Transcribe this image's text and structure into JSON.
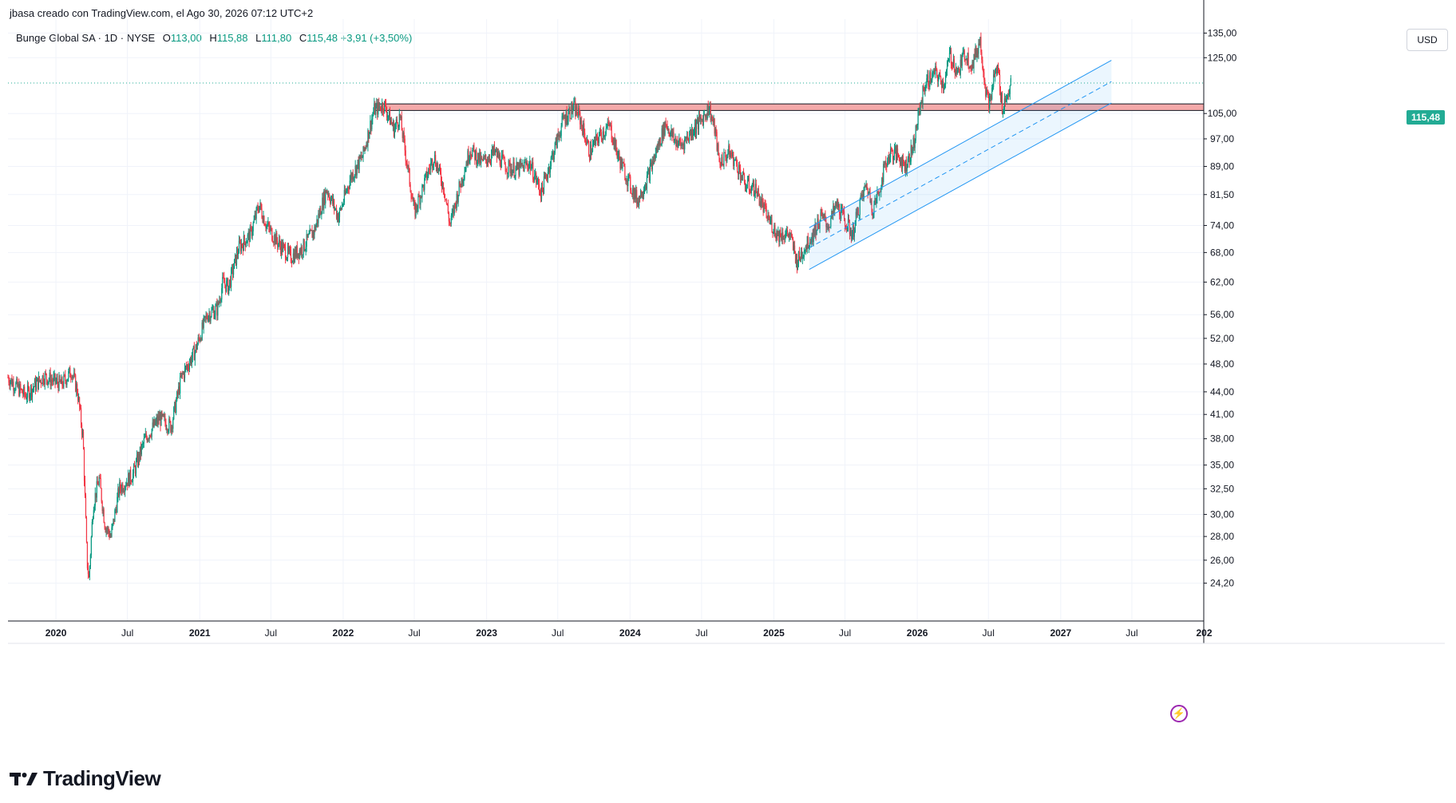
{
  "header": {
    "attribution": "jbasa creado con TradingView.com, el Ago 30, 2026 07:12 UTC+2"
  },
  "legend": {
    "symbol": "Bunge Global SA · 1D · NYSE",
    "open_label": "O",
    "open": "113,00",
    "high_label": "H",
    "high": "115,88",
    "low_label": "L",
    "low": "111,80",
    "close_label": "C",
    "close": "115,48",
    "change": "+3,91 (+3,50%)"
  },
  "price_axis": {
    "currency": "USD",
    "last_price_tag": "115,48"
  },
  "brand": {
    "name": "TradingView"
  },
  "icons": {
    "brand_logo": "tradingview-logo-icon",
    "lightning": "lightning-icon"
  },
  "colors": {
    "up": "#089981",
    "down": "#f23645",
    "resistance_zone": "#f5a9a9",
    "channel": "#2196f3",
    "last_price": "#22ab94"
  },
  "chart_data": {
    "type": "candlestick",
    "scale": "log",
    "ylim": [
      21.5,
      141
    ],
    "y_ticks": [
      {
        "value": 135,
        "label": "135,00"
      },
      {
        "value": 125,
        "label": "125,00"
      },
      {
        "value": 105,
        "label": "105,00"
      },
      {
        "value": 97,
        "label": "97,00"
      },
      {
        "value": 89,
        "label": "89,00"
      },
      {
        "value": 81.5,
        "label": "81,50"
      },
      {
        "value": 74,
        "label": "74,00"
      },
      {
        "value": 68,
        "label": "68,00"
      },
      {
        "value": 62,
        "label": "62,00"
      },
      {
        "value": 56,
        "label": "56,00"
      },
      {
        "value": 52,
        "label": "52,00"
      },
      {
        "value": 48,
        "label": "48,00"
      },
      {
        "value": 44,
        "label": "44,00"
      },
      {
        "value": 41,
        "label": "41,00"
      },
      {
        "value": 38,
        "label": "38,00"
      },
      {
        "value": 35,
        "label": "35,00"
      },
      {
        "value": 32.5,
        "label": "32,50"
      },
      {
        "value": 30,
        "label": "30,00"
      },
      {
        "value": 28,
        "label": "28,00"
      },
      {
        "value": 26,
        "label": "26,00"
      },
      {
        "value": 24.2,
        "label": "24,20"
      }
    ],
    "x_range": [
      "2019-09-01",
      "2027-12-31"
    ],
    "x_ticks": [
      {
        "date": "2020-01-01",
        "label": "2020",
        "year": true
      },
      {
        "date": "2020-07-01",
        "label": "Jul",
        "year": false
      },
      {
        "date": "2021-01-01",
        "label": "2021",
        "year": true
      },
      {
        "date": "2021-07-01",
        "label": "Jul",
        "year": false
      },
      {
        "date": "2022-01-01",
        "label": "2022",
        "year": true
      },
      {
        "date": "2022-07-01",
        "label": "Jul",
        "year": false
      },
      {
        "date": "2023-01-01",
        "label": "2023",
        "year": true
      },
      {
        "date": "2023-07-01",
        "label": "Jul",
        "year": false
      },
      {
        "date": "2024-01-01",
        "label": "2024",
        "year": true
      },
      {
        "date": "2024-07-01",
        "label": "Jul",
        "year": false
      },
      {
        "date": "2025-01-01",
        "label": "2025",
        "year": true
      },
      {
        "date": "2025-07-01",
        "label": "Jul",
        "year": false
      },
      {
        "date": "2026-01-01",
        "label": "2026",
        "year": true
      },
      {
        "date": "2026-07-01",
        "label": "Jul",
        "year": false
      },
      {
        "date": "2027-01-01",
        "label": "2027",
        "year": true
      },
      {
        "date": "2027-07-01",
        "label": "Jul",
        "year": false
      },
      {
        "date": "2028-01-01",
        "label": "202",
        "year": true
      }
    ],
    "last_price": 115.48,
    "resistance_zone": {
      "from_date": "2022-03-25",
      "to_date": "2027-12-31",
      "low": 106,
      "high": 108.2
    },
    "channel": {
      "upper": [
        {
          "date": "2025-04-01",
          "value": 73.5
        },
        {
          "date": "2027-05-10",
          "value": 124
        }
      ],
      "middle": [
        {
          "date": "2025-04-01",
          "value": 69
        },
        {
          "date": "2027-05-10",
          "value": 116
        }
      ],
      "lower": [
        {
          "date": "2025-04-01",
          "value": 64.5
        },
        {
          "date": "2027-05-10",
          "value": 108.5
        }
      ]
    },
    "price_path": [
      {
        "date": "2019-09-01",
        "value": 46
      },
      {
        "date": "2019-10-15",
        "value": 43.5
      },
      {
        "date": "2019-12-01",
        "value": 46.2
      },
      {
        "date": "2020-01-15",
        "value": 45
      },
      {
        "date": "2020-02-10",
        "value": 47
      },
      {
        "date": "2020-02-25",
        "value": 44
      },
      {
        "date": "2020-03-10",
        "value": 38
      },
      {
        "date": "2020-03-20",
        "value": 26
      },
      {
        "date": "2020-03-25",
        "value": 24.5
      },
      {
        "date": "2020-04-05",
        "value": 31
      },
      {
        "date": "2020-04-20",
        "value": 33.5
      },
      {
        "date": "2020-05-05",
        "value": 29
      },
      {
        "date": "2020-05-20",
        "value": 28
      },
      {
        "date": "2020-06-10",
        "value": 32.5
      },
      {
        "date": "2020-07-15",
        "value": 34
      },
      {
        "date": "2020-08-15",
        "value": 38
      },
      {
        "date": "2020-09-20",
        "value": 40.5
      },
      {
        "date": "2020-10-20",
        "value": 39.5
      },
      {
        "date": "2020-11-15",
        "value": 46
      },
      {
        "date": "2020-12-20",
        "value": 50
      },
      {
        "date": "2021-01-20",
        "value": 56
      },
      {
        "date": "2021-02-15",
        "value": 57
      },
      {
        "date": "2021-03-01",
        "value": 62
      },
      {
        "date": "2021-03-15",
        "value": 61
      },
      {
        "date": "2021-04-10",
        "value": 69
      },
      {
        "date": "2021-05-10",
        "value": 72
      },
      {
        "date": "2021-06-01",
        "value": 79
      },
      {
        "date": "2021-06-20",
        "value": 74
      },
      {
        "date": "2021-07-20",
        "value": 70
      },
      {
        "date": "2021-08-20",
        "value": 67
      },
      {
        "date": "2021-09-20",
        "value": 69
      },
      {
        "date": "2021-10-20",
        "value": 73
      },
      {
        "date": "2021-11-20",
        "value": 83
      },
      {
        "date": "2021-12-20",
        "value": 76
      },
      {
        "date": "2022-01-20",
        "value": 86
      },
      {
        "date": "2022-02-20",
        "value": 92
      },
      {
        "date": "2022-03-20",
        "value": 106
      },
      {
        "date": "2022-04-15",
        "value": 108
      },
      {
        "date": "2022-05-10",
        "value": 100
      },
      {
        "date": "2022-05-25",
        "value": 104
      },
      {
        "date": "2022-06-15",
        "value": 88
      },
      {
        "date": "2022-07-01",
        "value": 77
      },
      {
        "date": "2022-07-25",
        "value": 84
      },
      {
        "date": "2022-08-20",
        "value": 92
      },
      {
        "date": "2022-09-15",
        "value": 83
      },
      {
        "date": "2022-09-30",
        "value": 74
      },
      {
        "date": "2022-10-20",
        "value": 82
      },
      {
        "date": "2022-11-20",
        "value": 94
      },
      {
        "date": "2022-12-20",
        "value": 90
      },
      {
        "date": "2023-01-20",
        "value": 93
      },
      {
        "date": "2023-02-20",
        "value": 89
      },
      {
        "date": "2023-03-20",
        "value": 88
      },
      {
        "date": "2023-04-20",
        "value": 90
      },
      {
        "date": "2023-05-20",
        "value": 82
      },
      {
        "date": "2023-06-20",
        "value": 93
      },
      {
        "date": "2023-07-15",
        "value": 103
      },
      {
        "date": "2023-08-10",
        "value": 107
      },
      {
        "date": "2023-08-25",
        "value": 104
      },
      {
        "date": "2023-09-20",
        "value": 93
      },
      {
        "date": "2023-10-15",
        "value": 98
      },
      {
        "date": "2023-11-10",
        "value": 101
      },
      {
        "date": "2023-12-01",
        "value": 92
      },
      {
        "date": "2024-01-01",
        "value": 84
      },
      {
        "date": "2024-01-20",
        "value": 80
      },
      {
        "date": "2024-02-15",
        "value": 86
      },
      {
        "date": "2024-03-10",
        "value": 94
      },
      {
        "date": "2024-04-01",
        "value": 102
      },
      {
        "date": "2024-04-20",
        "value": 97
      },
      {
        "date": "2024-05-10",
        "value": 95
      },
      {
        "date": "2024-06-10",
        "value": 100
      },
      {
        "date": "2024-07-01",
        "value": 103
      },
      {
        "date": "2024-07-20",
        "value": 107
      },
      {
        "date": "2024-08-05",
        "value": 99
      },
      {
        "date": "2024-08-15",
        "value": 90
      },
      {
        "date": "2024-09-10",
        "value": 93
      },
      {
        "date": "2024-10-01",
        "value": 89
      },
      {
        "date": "2024-10-20",
        "value": 84
      },
      {
        "date": "2024-11-15",
        "value": 83
      },
      {
        "date": "2024-12-15",
        "value": 76
      },
      {
        "date": "2025-01-10",
        "value": 72
      },
      {
        "date": "2025-02-10",
        "value": 72
      },
      {
        "date": "2025-03-01",
        "value": 66
      },
      {
        "date": "2025-03-20",
        "value": 69
      },
      {
        "date": "2025-04-10",
        "value": 72
      },
      {
        "date": "2025-05-01",
        "value": 76
      },
      {
        "date": "2025-05-20",
        "value": 74
      },
      {
        "date": "2025-06-10",
        "value": 79
      },
      {
        "date": "2025-07-01",
        "value": 75
      },
      {
        "date": "2025-07-20",
        "value": 72
      },
      {
        "date": "2025-08-10",
        "value": 80
      },
      {
        "date": "2025-08-25",
        "value": 84
      },
      {
        "date": "2025-09-10",
        "value": 78
      },
      {
        "date": "2025-09-25",
        "value": 82
      },
      {
        "date": "2025-10-10",
        "value": 89
      },
      {
        "date": "2025-10-25",
        "value": 93
      },
      {
        "date": "2025-11-15",
        "value": 92
      },
      {
        "date": "2025-12-01",
        "value": 89
      },
      {
        "date": "2025-12-20",
        "value": 94
      },
      {
        "date": "2026-01-05",
        "value": 105
      },
      {
        "date": "2026-01-20",
        "value": 115
      },
      {
        "date": "2026-02-15",
        "value": 119
      },
      {
        "date": "2026-03-10",
        "value": 115
      },
      {
        "date": "2026-03-25",
        "value": 126
      },
      {
        "date": "2026-04-15",
        "value": 119
      },
      {
        "date": "2026-05-01",
        "value": 127
      },
      {
        "date": "2026-05-20",
        "value": 122
      },
      {
        "date": "2026-06-10",
        "value": 132
      },
      {
        "date": "2026-06-25",
        "value": 112
      },
      {
        "date": "2026-07-05",
        "value": 108
      },
      {
        "date": "2026-07-15",
        "value": 118
      },
      {
        "date": "2026-07-25",
        "value": 121
      },
      {
        "date": "2026-08-05",
        "value": 107
      },
      {
        "date": "2026-08-15",
        "value": 110
      },
      {
        "date": "2026-08-28",
        "value": 115.48
      }
    ]
  }
}
